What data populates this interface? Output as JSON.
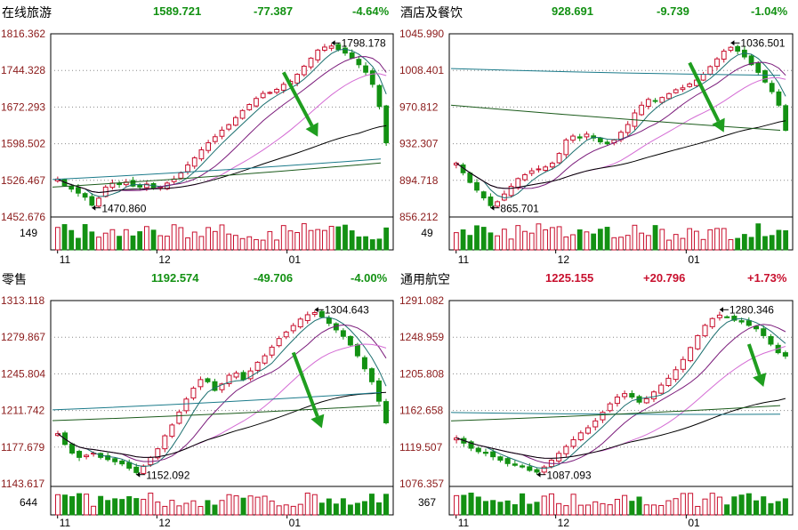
{
  "colors": {
    "up": "#c8102e",
    "down": "#139113",
    "frame": "#000000",
    "grid": "#8a8a8a",
    "axis_text_price": "#8b1a1a",
    "axis_text_vol": "#000000",
    "arrow": "#1f9e1f",
    "ma5": "#1b6f6f",
    "ma10": "#7a1a7a",
    "ma20": "#d46bd4",
    "ma60": "#000000",
    "ma120": "#1a7a8a",
    "ma250": "#1a5a1a"
  },
  "chart_data": [
    {
      "type": "candlestick",
      "name": "在线旅游",
      "price": "1589.721",
      "change": "-77.387",
      "pct": "-4.64%",
      "trend": "down",
      "ylim": [
        1452.676,
        1816.362
      ],
      "yticks": [
        "1816.362",
        "1744.328",
        "1672.293",
        "1598.502",
        "1526.467",
        "1452.676"
      ],
      "vol_label": "149",
      "months": [
        "11",
        "12",
        "01"
      ],
      "annotations": [
        {
          "text": "1798.178",
          "value": 1798.178
        },
        {
          "text": "1470.860",
          "value": 1470.86
        }
      ],
      "high": 1798.178,
      "low": 1470.86,
      "path": [
        1528,
        1515,
        1508,
        1500,
        1492,
        1476,
        1490,
        1512,
        1520,
        1517,
        1522,
        1514,
        1512,
        1518,
        1509,
        1512,
        1520,
        1528,
        1540,
        1556,
        1570,
        1586,
        1600,
        1612,
        1625,
        1636,
        1650,
        1664,
        1676,
        1688,
        1698,
        1700,
        1706,
        1716,
        1722,
        1736,
        1752,
        1768,
        1784,
        1790,
        1792,
        1785,
        1778,
        1768,
        1755,
        1740,
        1716,
        1672,
        1600
      ],
      "ma_long": [
        {
          "series": "ma120",
          "start": 1527,
          "end": 1568
        },
        {
          "series": "ma250",
          "start": 1512,
          "end": 1560
        }
      ],
      "arrow_from": [
        33,
        1740
      ],
      "arrow_to": [
        38,
        1612
      ]
    },
    {
      "type": "candlestick",
      "name": "酒店及餐饮",
      "price": "928.691",
      "change": "-9.739",
      "pct": "-1.04%",
      "trend": "down",
      "ylim": [
        856.212,
        1045.99
      ],
      "yticks": [
        "1045.990",
        "1008.401",
        "970.812",
        "932.307",
        "894.718",
        "856.212"
      ],
      "vol_label": "49",
      "months": [
        "11",
        "12",
        "01"
      ],
      "annotations": [
        {
          "text": "1036.501",
          "value": 1036.501
        },
        {
          "text": "865.701",
          "value": 865.701
        }
      ],
      "high": 1036.501,
      "low": 865.701,
      "path": [
        912,
        902,
        892,
        884,
        876,
        868,
        872,
        880,
        888,
        896,
        900,
        904,
        906,
        908,
        912,
        922,
        936,
        940,
        938,
        942,
        938,
        934,
        932,
        936,
        944,
        952,
        964,
        972,
        978,
        976,
        980,
        984,
        988,
        990,
        994,
        998,
        1004,
        1012,
        1020,
        1028,
        1032,
        1028,
        1022,
        1014,
        1006,
        996,
        986,
        972,
        946
      ],
      "ma_long": [
        {
          "series": "ma120",
          "start": 1010,
          "end": 1003
        },
        {
          "series": "ma250",
          "start": 972,
          "end": 946
        }
      ],
      "arrow_from": [
        34,
        1016
      ],
      "arrow_to": [
        39,
        944
      ]
    },
    {
      "type": "candlestick",
      "name": "零售",
      "price": "1192.574",
      "change": "-49.706",
      "pct": "-4.00%",
      "trend": "down",
      "ylim": [
        1143.617,
        1313.118
      ],
      "yticks": [
        "1313.118",
        "1279.867",
        "1245.804",
        "1211.742",
        "1177.679",
        "1143.617"
      ],
      "vol_label": "644",
      "months": [
        "11",
        "12",
        "01"
      ],
      "annotations": [
        {
          "text": "1304.643",
          "value": 1304.643
        },
        {
          "text": "1152.092",
          "value": 1152.092
        }
      ],
      "high": 1304.643,
      "low": 1152.092,
      "path": [
        1190,
        1180,
        1172,
        1168,
        1170,
        1172,
        1168,
        1166,
        1164,
        1162,
        1158,
        1154,
        1160,
        1168,
        1176,
        1188,
        1198,
        1210,
        1222,
        1232,
        1240,
        1238,
        1230,
        1236,
        1244,
        1246,
        1240,
        1248,
        1256,
        1262,
        1270,
        1278,
        1284,
        1290,
        1296,
        1300,
        1302,
        1298,
        1292,
        1286,
        1280,
        1272,
        1262,
        1250,
        1238,
        1220,
        1200
      ],
      "ma_long": [
        {
          "series": "ma120",
          "start": 1212,
          "end": 1228
        },
        {
          "series": "ma250",
          "start": 1202,
          "end": 1216
        }
      ],
      "arrow_from": [
        33,
        1265
      ],
      "arrow_to": [
        37,
        1195
      ]
    },
    {
      "type": "candlestick",
      "name": "通用航空",
      "price": "1225.155",
      "change": "+20.796",
      "pct": "+1.73%",
      "trend": "up",
      "ylim": [
        1076.357,
        1291.082
      ],
      "yticks": [
        "1291.082",
        "1248.959",
        "1205.808",
        "1162.658",
        "1119.507",
        "1076.357"
      ],
      "vol_label": "367",
      "months": [
        "11",
        "12",
        "01"
      ],
      "annotations": [
        {
          "text": "1280.346",
          "value": 1280.346
        },
        {
          "text": "1087.093",
          "value": 1087.093
        }
      ],
      "high": 1280.346,
      "low": 1087.093,
      "path": [
        1130,
        1124,
        1118,
        1114,
        1112,
        1108,
        1104,
        1100,
        1098,
        1096,
        1092,
        1090,
        1096,
        1104,
        1112,
        1120,
        1128,
        1136,
        1142,
        1150,
        1160,
        1170,
        1178,
        1182,
        1178,
        1172,
        1176,
        1184,
        1192,
        1200,
        1210,
        1222,
        1236,
        1250,
        1262,
        1270,
        1274,
        1272,
        1268,
        1266,
        1262,
        1258,
        1250,
        1240,
        1230,
        1226
      ],
      "ma_long": [
        {
          "series": "ma120",
          "start": 1160,
          "end": 1158
        },
        {
          "series": "ma250",
          "start": 1150,
          "end": 1168
        }
      ],
      "arrow_from": [
        40,
        1240
      ],
      "arrow_to": [
        42,
        1190
      ]
    }
  ]
}
